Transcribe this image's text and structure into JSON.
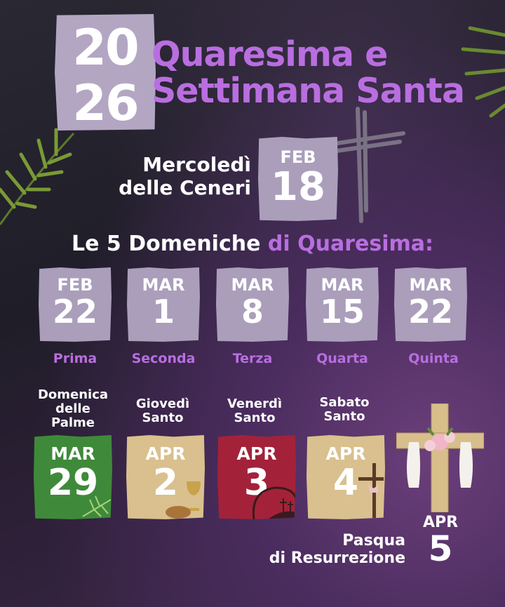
{
  "header": {
    "year_top": "20",
    "year_bottom": "26",
    "title_line1": "Quaresima e",
    "title_line2": "Settimana Santa"
  },
  "ash_wednesday": {
    "label_line1": "Mercoledì",
    "label_line2": "delle Ceneri",
    "month": "FEB",
    "day": "18"
  },
  "sundays": {
    "heading_white": "Le 5 Domeniche",
    "heading_purple": "di Quaresima:",
    "items": [
      {
        "month": "FEB",
        "day": "22",
        "label": "Prima"
      },
      {
        "month": "MAR",
        "day": "1",
        "label": "Seconda"
      },
      {
        "month": "MAR",
        "day": "8",
        "label": "Terza"
      },
      {
        "month": "MAR",
        "day": "15",
        "label": "Quarta"
      },
      {
        "month": "MAR",
        "day": "22",
        "label": "Quinta"
      }
    ]
  },
  "holy_week": [
    {
      "label_lines": [
        "Domenica",
        "delle",
        "Palme"
      ],
      "month": "MAR",
      "day": "29",
      "color": "#3f8a3a",
      "icon": "palm-leaf-icon"
    },
    {
      "label_lines": [
        "Giovedì",
        "Santo"
      ],
      "month": "APR",
      "day": "2",
      "color": "#d9c08e",
      "icon": "chalice-bread-icon"
    },
    {
      "label_lines": [
        "Venerdì",
        "Santo"
      ],
      "month": "APR",
      "day": "3",
      "color": "#a3223a",
      "icon": "crown-of-thorns-icon"
    },
    {
      "label_lines": [
        "Sabato",
        "Santo"
      ],
      "month": "APR",
      "day": "4",
      "color": "#d9c08e",
      "icon": "cross-shroud-icon"
    }
  ],
  "easter": {
    "label_line1": "Pasqua",
    "label_line2": "di Resurrezione",
    "month": "APR",
    "day": "5",
    "icon": "cross-with-flowers-icon"
  },
  "colors": {
    "accent_purple": "#b96ee0",
    "card_lavender": "#aa9ebb"
  }
}
